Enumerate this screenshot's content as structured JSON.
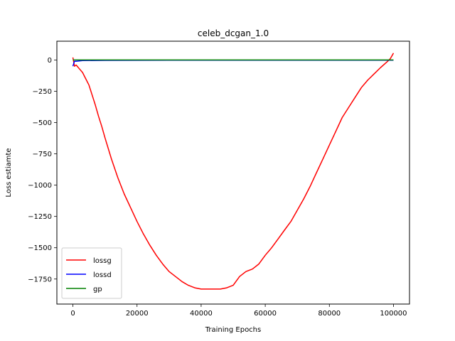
{
  "chart_data": {
    "type": "line",
    "title": "celeb_dcgan_1.0",
    "xlabel": "Training Epochs",
    "ylabel": "Loss estiamte",
    "xlim": [
      -5000,
      105000
    ],
    "ylim": [
      -1950,
      150
    ],
    "x_ticks": [
      0,
      20000,
      40000,
      60000,
      80000,
      100000
    ],
    "x_tick_labels": [
      "0",
      "20000",
      "40000",
      "60000",
      "80000",
      "100000"
    ],
    "y_ticks": [
      0,
      -250,
      -500,
      -750,
      -1000,
      -1250,
      -1500,
      -1750
    ],
    "y_tick_labels": [
      "0",
      "−250",
      "−500",
      "−750",
      "−1000",
      "−1250",
      "−1500",
      "−1750"
    ],
    "grid": false,
    "legend_position": "lower-left",
    "series": [
      {
        "name": "lossg",
        "color": "#ff0000",
        "x": [
          0,
          500,
          1000,
          2000,
          3000,
          4000,
          5000,
          6000,
          7000,
          8000,
          9000,
          10000,
          12000,
          14000,
          16000,
          18000,
          20000,
          22000,
          24000,
          26000,
          28000,
          30000,
          32000,
          34000,
          36000,
          38000,
          40000,
          42000,
          44000,
          46000,
          48000,
          50000,
          52000,
          54000,
          56000,
          58000,
          60000,
          62000,
          64000,
          66000,
          68000,
          70000,
          72000,
          74000,
          76000,
          78000,
          80000,
          82000,
          84000,
          86000,
          88000,
          90000,
          92000,
          94000,
          96000,
          98000,
          99000,
          100000
        ],
        "y": [
          20,
          -50,
          -40,
          -70,
          -100,
          -150,
          -200,
          -280,
          -360,
          -450,
          -530,
          -620,
          -790,
          -940,
          -1070,
          -1180,
          -1290,
          -1390,
          -1480,
          -1560,
          -1630,
          -1690,
          -1730,
          -1770,
          -1800,
          -1820,
          -1830,
          -1830,
          -1830,
          -1830,
          -1820,
          -1800,
          -1730,
          -1690,
          -1670,
          -1630,
          -1560,
          -1500,
          -1430,
          -1360,
          -1290,
          -1200,
          -1110,
          -1010,
          -900,
          -790,
          -680,
          -570,
          -460,
          -380,
          -300,
          -220,
          -160,
          -110,
          -60,
          -15,
          10,
          55
        ]
      },
      {
        "name": "lossd",
        "color": "#0000ff",
        "x": [
          0,
          500,
          1000,
          3000,
          10000,
          30000,
          60000,
          100000
        ],
        "y": [
          -50,
          -10,
          -10,
          -5,
          -3,
          -2,
          -2,
          -2
        ]
      },
      {
        "name": "gp",
        "color": "#008000",
        "x": [
          0,
          2000,
          10000,
          30000,
          60000,
          100000
        ],
        "y": [
          0,
          0,
          0,
          0,
          0,
          0
        ]
      }
    ]
  }
}
